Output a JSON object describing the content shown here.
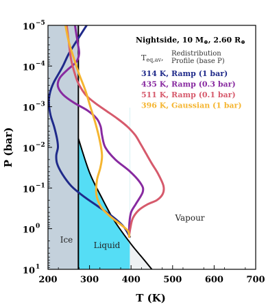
{
  "chart_data": {
    "type": "line",
    "xlabel": "T (K)",
    "ylabel": "P (bar)",
    "xlim": [
      200,
      700
    ],
    "ylim_log10": [
      -5,
      1
    ],
    "y_inverted": true,
    "x_ticks": [
      200,
      300,
      400,
      500,
      600,
      700
    ],
    "x_tick_labels": [
      "200",
      "300",
      "400",
      "500",
      "600",
      "700"
    ],
    "y_ticks_log10": [
      -5,
      -4,
      -3,
      -2,
      -1,
      0,
      1
    ],
    "y_tick_labels": [
      "10",
      "10",
      "10",
      "10",
      "10",
      "10",
      "10"
    ],
    "y_tick_exponents": [
      "−5",
      "−4",
      "−3",
      "−2",
      "−1",
      "0",
      "1"
    ],
    "grid": false,
    "legend_placement": "top-right",
    "legend": {
      "header_line1": "Nightside, 10 M",
      "header_line1b": ", 2.60 R",
      "header_earth_symbol": "⊕",
      "teq_label": "T",
      "teq_sub": "eq,av",
      "teq_sep": ",",
      "redist_line1": "Redistribution",
      "redist_line2": "Profile (base P)"
    },
    "regions": {
      "ice": {
        "label": "Ice",
        "color": "#c4d1dc",
        "T_range": [
          200,
          273.15
        ]
      },
      "liquid": {
        "label": "Liquid",
        "color": "#55ddf5",
        "T_range": [
          273.15,
          397
        ]
      },
      "vapour": {
        "label": "Vapour"
      },
      "supercritical_shade": {
        "color": "#eef1f3"
      }
    },
    "phase_boundary_color": "#000000",
    "vaporization_curve": {
      "T": [
        273.15,
        300,
        330,
        360,
        400,
        430,
        450
      ],
      "log10P": [
        -2.22,
        -1.38,
        -0.75,
        -0.19,
        0.38,
        0.75,
        1.0
      ]
    },
    "series": [
      {
        "name": "314 K, Ramp (1 bar)",
        "color": "#1f2a8a",
        "T": [
          293,
          268,
          250,
          236,
          225,
          214,
          208,
          204,
          202,
          206,
          215,
          222,
          224,
          220,
          222,
          234,
          256,
          285,
          320,
          355,
          382,
          397
        ],
        "log10P": [
          -5.0,
          -4.6,
          -4.3,
          -4.0,
          -3.8,
          -3.6,
          -3.45,
          -3.3,
          -3.1,
          -2.8,
          -2.5,
          -2.2,
          -2.0,
          -1.8,
          -1.6,
          -1.35,
          -1.05,
          -0.8,
          -0.55,
          -0.3,
          -0.05,
          0.2
        ]
      },
      {
        "name": "435 K, Ramp (0.3 bar)",
        "color": "#882aa0",
        "T": [
          265,
          268,
          272,
          275,
          268,
          246,
          228,
          224,
          236,
          262,
          296,
          318,
          327,
          330,
          338,
          362,
          398,
          424,
          428,
          411,
          400,
          396,
          395
        ],
        "log10P": [
          -5.0,
          -4.8,
          -4.55,
          -4.3,
          -4.1,
          -3.9,
          -3.7,
          -3.5,
          -3.3,
          -3.1,
          -2.9,
          -2.7,
          -2.5,
          -2.3,
          -2.0,
          -1.7,
          -1.4,
          -1.1,
          -0.9,
          -0.6,
          -0.4,
          -0.15,
          0.15
        ]
      },
      {
        "name": "511 K, Ramp (0.1 bar)",
        "color": "#d65a6c",
        "T": [
          245,
          250,
          255,
          262,
          272,
          290,
          312,
          340,
          368,
          392,
          410,
          422,
          436,
          450,
          465,
          478,
          476,
          462,
          440,
          418,
          404,
          398,
          395
        ],
        "log10P": [
          -5.0,
          -4.6,
          -4.2,
          -3.9,
          -3.6,
          -3.3,
          -3.1,
          -2.9,
          -2.7,
          -2.5,
          -2.3,
          -2.1,
          -1.85,
          -1.6,
          -1.35,
          -1.05,
          -0.85,
          -0.7,
          -0.6,
          -0.45,
          -0.25,
          0.0,
          0.2
        ]
      },
      {
        "name": "396 K, Gaussian (1 bar)",
        "color": "#f5b530",
        "T": [
          242,
          250,
          262,
          275,
          290,
          302,
          314,
          324,
          330,
          326,
          318,
          316,
          320,
          330,
          350,
          375,
          392,
          396
        ],
        "log10P": [
          -5.0,
          -4.6,
          -4.2,
          -3.8,
          -3.4,
          -3.0,
          -2.6,
          -2.2,
          -1.8,
          -1.5,
          -1.2,
          -0.9,
          -0.7,
          -0.5,
          -0.3,
          -0.1,
          0.05,
          0.2
        ]
      }
    ]
  }
}
